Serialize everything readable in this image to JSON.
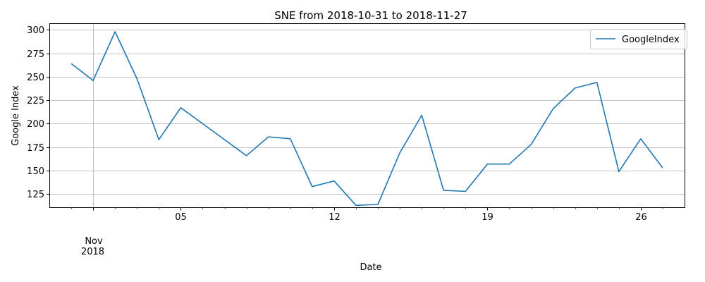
{
  "chart_data": {
    "type": "line",
    "title": "SNE from 2018-10-31 to 2018-11-27",
    "xlabel": "Date",
    "ylabel": "Google Index",
    "xlim": [
      "2018-10-30",
      "2018-11-28"
    ],
    "ylim": [
      111,
      307
    ],
    "grid": true,
    "legend": "top-right",
    "y_ticks": [
      125,
      150,
      175,
      200,
      225,
      250,
      275,
      300
    ],
    "x_major_ticks": [
      {
        "date": "2018-11-01",
        "label": "Nov",
        "sublabel": "2018"
      },
      {
        "date": "2018-11-05",
        "label": "05",
        "sublabel": ""
      },
      {
        "date": "2018-11-12",
        "label": "12",
        "sublabel": ""
      },
      {
        "date": "2018-11-19",
        "label": "19",
        "sublabel": ""
      },
      {
        "date": "2018-11-26",
        "label": "26",
        "sublabel": ""
      }
    ],
    "x_grid_dates": [
      "2018-11-01",
      "2018-11-28"
    ],
    "series": [
      {
        "name": "GoogleIndex",
        "color": "#1f77b4",
        "x": [
          "2018-10-31",
          "2018-11-01",
          "2018-11-02",
          "2018-11-03",
          "2018-11-04",
          "2018-11-05",
          "2018-11-06",
          "2018-11-07",
          "2018-11-08",
          "2018-11-09",
          "2018-11-10",
          "2018-11-11",
          "2018-11-12",
          "2018-11-13",
          "2018-11-14",
          "2018-11-15",
          "2018-11-16",
          "2018-11-17",
          "2018-11-18",
          "2018-11-19",
          "2018-11-20",
          "2018-11-21",
          "2018-11-22",
          "2018-11-23",
          "2018-11-24",
          "2018-11-25",
          "2018-11-26",
          "2018-11-27"
        ],
        "values": [
          264,
          246,
          298,
          248,
          183,
          217,
          200,
          183,
          166,
          186,
          184,
          133,
          139,
          113,
          114,
          169,
          209,
          129,
          128,
          157,
          157,
          178,
          216,
          238,
          244,
          149,
          184,
          153
        ]
      }
    ]
  }
}
